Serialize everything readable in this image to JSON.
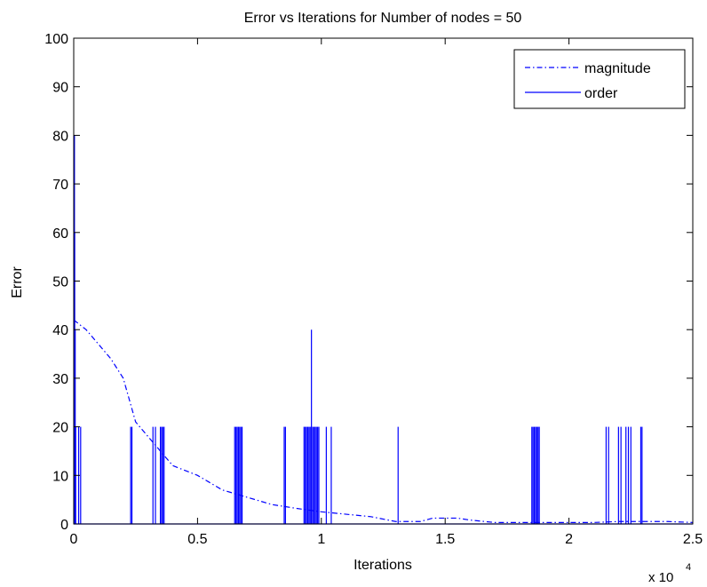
{
  "chart_data": {
    "type": "line",
    "title": "Error vs Iterations for Number of nodes = 50",
    "xlabel": "Iterations",
    "ylabel": "Error",
    "x_exponent_label": {
      "base": "x 10",
      "exp": "4"
    },
    "xlim": [
      0,
      2.5
    ],
    "ylim": [
      0,
      100
    ],
    "xticks": [
      0,
      0.5,
      1,
      1.5,
      2,
      2.5
    ],
    "xtick_labels": [
      "0",
      "0.5",
      "1",
      "1.5",
      "2",
      "2.5"
    ],
    "yticks": [
      0,
      10,
      20,
      30,
      40,
      50,
      60,
      70,
      80,
      90,
      100
    ],
    "ytick_labels": [
      "0",
      "10",
      "20",
      "30",
      "40",
      "50",
      "60",
      "70",
      "80",
      "90",
      "100"
    ],
    "grid": false,
    "legend_position": "top-right",
    "series": [
      {
        "name": "magnitude",
        "style": "dashdot",
        "color": "#0000ff",
        "points": [
          [
            0,
            42
          ],
          [
            0.05,
            40
          ],
          [
            0.1,
            37
          ],
          [
            0.15,
            34
          ],
          [
            0.2,
            30
          ],
          [
            0.25,
            21
          ],
          [
            0.3,
            18
          ],
          [
            0.35,
            15
          ],
          [
            0.4,
            12
          ],
          [
            0.5,
            10
          ],
          [
            0.6,
            7
          ],
          [
            0.7,
            5.5
          ],
          [
            0.8,
            4
          ],
          [
            0.9,
            3.2
          ],
          [
            1.0,
            2.5
          ],
          [
            1.1,
            2
          ],
          [
            1.2,
            1.5
          ],
          [
            1.3,
            0.5
          ],
          [
            1.4,
            0.5
          ],
          [
            1.45,
            1.2
          ],
          [
            1.55,
            1.2
          ],
          [
            1.6,
            0.8
          ],
          [
            1.7,
            0.3
          ],
          [
            1.8,
            0.3
          ],
          [
            1.9,
            0.3
          ],
          [
            2.0,
            0.3
          ],
          [
            2.1,
            0.3
          ],
          [
            2.2,
            0.5
          ],
          [
            2.3,
            0.5
          ],
          [
            2.4,
            0.5
          ],
          [
            2.5,
            0.3
          ]
        ]
      },
      {
        "name": "order",
        "style": "solid",
        "color": "#0000ff",
        "baseline": 0,
        "spikes": [
          [
            0.001,
            80
          ],
          [
            0.003,
            80
          ],
          [
            0.004,
            60
          ],
          [
            0.006,
            40
          ],
          [
            0.008,
            20
          ],
          [
            0.02,
            20
          ],
          [
            0.028,
            20
          ],
          [
            0.23,
            20
          ],
          [
            0.235,
            20
          ],
          [
            0.32,
            20
          ],
          [
            0.33,
            20
          ],
          [
            0.35,
            20
          ],
          [
            0.355,
            20
          ],
          [
            0.36,
            20
          ],
          [
            0.365,
            20
          ],
          [
            0.65,
            20
          ],
          [
            0.655,
            20
          ],
          [
            0.66,
            20
          ],
          [
            0.665,
            20
          ],
          [
            0.67,
            20
          ],
          [
            0.675,
            20
          ],
          [
            0.68,
            20
          ],
          [
            0.85,
            20
          ],
          [
            0.855,
            20
          ],
          [
            0.93,
            20
          ],
          [
            0.935,
            20
          ],
          [
            0.94,
            20
          ],
          [
            0.945,
            20
          ],
          [
            0.95,
            20
          ],
          [
            0.955,
            20
          ],
          [
            0.96,
            40
          ],
          [
            0.965,
            20
          ],
          [
            0.97,
            20
          ],
          [
            0.975,
            20
          ],
          [
            0.98,
            20
          ],
          [
            0.985,
            20
          ],
          [
            0.99,
            20
          ],
          [
            1.02,
            20
          ],
          [
            1.04,
            20
          ],
          [
            1.31,
            20
          ],
          [
            1.85,
            20
          ],
          [
            1.855,
            20
          ],
          [
            1.86,
            20
          ],
          [
            1.865,
            20
          ],
          [
            1.87,
            20
          ],
          [
            1.875,
            20
          ],
          [
            1.88,
            20
          ],
          [
            2.15,
            20
          ],
          [
            2.16,
            20
          ],
          [
            2.2,
            20
          ],
          [
            2.21,
            20
          ],
          [
            2.23,
            20
          ],
          [
            2.24,
            20
          ],
          [
            2.25,
            20
          ],
          [
            2.29,
            20
          ],
          [
            2.295,
            20
          ]
        ]
      }
    ]
  }
}
